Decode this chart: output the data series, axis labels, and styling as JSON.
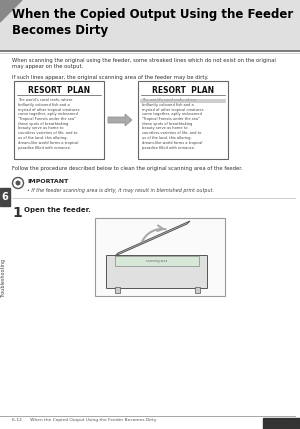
{
  "page_bg": "#ffffff",
  "title": "When the Copied Output Using the Feeder\nBecomes Dirty",
  "title_bg": "#e0e0e0",
  "title_color": "#000000",
  "title_fontsize": 8.5,
  "body_text1": "When scanning the original using the feeder, some streaked lines which do not exist on the original\nmay appear on the output.",
  "body_text2": "If such lines appear, the original scanning area of the feeder may be dirty.",
  "follow_text": "Follow the procedure described below to clean the original scanning area of the feeder.",
  "important_label": "IMPORTANT",
  "important_text": "• If the feeder scanning area is dirty, it may result in blemished print output.",
  "step_num": "1",
  "step_text": "Open the feeder.",
  "resort_plan_title": "RESORT  PLAN",
  "resort_plan_body": "The world's coral reefs, where\nbrillantly coloured fish and a\nmyriad of other tropical creatures\ncome together, aptly nicknamed\n\"Tropical Forests under the sea\"\nthese spots of breathtaking\nbeauty serve as home to\ncountless varieties of life, and to\nus of the land, this alluring,\ndream-like world forms a tropical\nparadise filled with romance.",
  "sidebar_color": "#888888",
  "sidebar_label": "Troubleshooting",
  "sidebar_num": "6",
  "footer_text": "6-12      When the Copied Output Using the Feeder Becomes Dirty",
  "arrow_color": "#888888",
  "box_border": "#666666",
  "streak_color": "#bbbbbb",
  "important_circle_color": "#555555",
  "notch_color": "#888888"
}
